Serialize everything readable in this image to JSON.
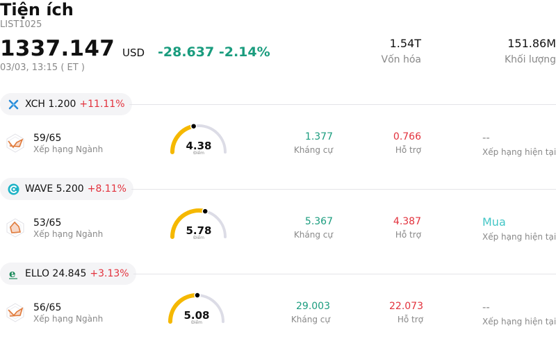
{
  "header": {
    "title": "Tiện ích",
    "code": "LIST1025",
    "price": "1337.147",
    "currency": "USD",
    "change": "-28.637",
    "change_pct": "-2.14%",
    "timestamp": "03/03, 13:15  ( ET )",
    "market_cap_value": "1.54T",
    "market_cap_label": "Vốn hóa",
    "volume_value": "151.86M",
    "volume_label": "Khối lượng"
  },
  "colors": {
    "positive": "#1a9c7e",
    "negative": "#e2313c",
    "gauge_fill": "#f5b800",
    "gauge_track": "#dcdce6",
    "buy": "#43c6c6"
  },
  "stocks": [
    {
      "symbol_price": "XCH 1.200",
      "pct": "+11.11%",
      "logo_icon": "xch-logo-icon",
      "rank": "59/65",
      "rank_label": "Xếp hạng Ngành",
      "score": "4.38",
      "score_level": 0.438,
      "score_label": "Điểm",
      "resistance": "1.377",
      "resistance_label": "Kháng cự",
      "support": "0.766",
      "support_label": "Hỗ trợ",
      "rating": "--",
      "rating_label": "Xếp hạng hiện tại"
    },
    {
      "symbol_price": "WAVE 5.200",
      "pct": "+8.11%",
      "logo_icon": "wave-logo-icon",
      "rank": "53/65",
      "rank_label": "Xếp hạng Ngành",
      "score": "5.78",
      "score_level": 0.578,
      "score_label": "Điểm",
      "resistance": "5.367",
      "resistance_label": "Kháng cự",
      "support": "4.387",
      "support_label": "Hỗ trợ",
      "rating": "Mua",
      "rating_label": "Xếp hạng hiện tại"
    },
    {
      "symbol_price": "ELLO 24.845",
      "pct": "+3.13%",
      "logo_icon": "ello-logo-icon",
      "rank": "56/65",
      "rank_label": "Xếp hạng Ngành",
      "score": "5.08",
      "score_level": 0.508,
      "score_label": "Điểm",
      "resistance": "29.003",
      "resistance_label": "Kháng cự",
      "support": "22.073",
      "support_label": "Hỗ trợ",
      "rating": "--",
      "rating_label": "Xếp hạng hiện tại"
    }
  ]
}
